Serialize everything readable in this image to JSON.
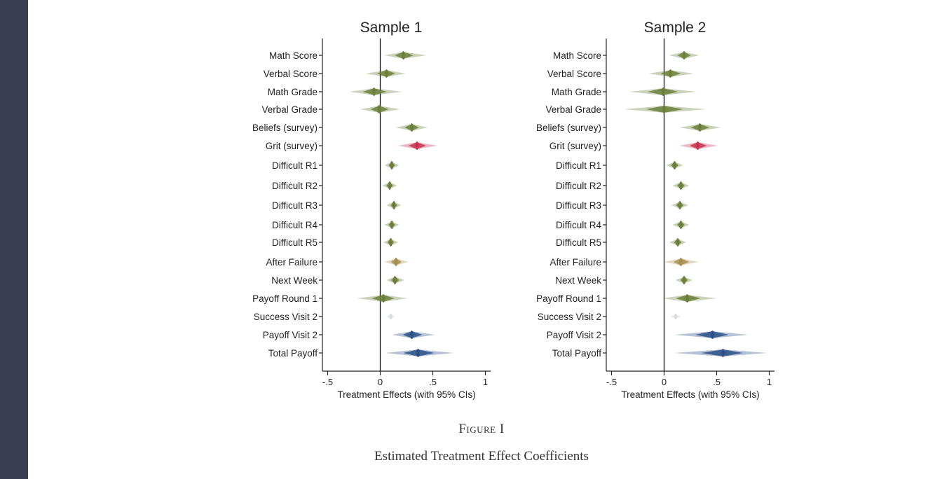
{
  "colors": {
    "sidebar": "#3a3f55",
    "green": "#6b7f3a",
    "red": "#c8324f",
    "blue": "#2a4f86",
    "tan": "#a68f4e",
    "grey": "#d8dde0",
    "title": "#3a3f66"
  },
  "chart_data": [
    {
      "type": "scatter",
      "title": "Sample 1",
      "xlabel": "Treatment Effects (with 95% CIs)",
      "ylabel": "",
      "xlim": [
        -0.55,
        1.05
      ],
      "xticks": [
        -0.5,
        0,
        0.5,
        1
      ],
      "xtick_labels": [
        "-.5",
        "0",
        ".5",
        "1"
      ],
      "grid": false,
      "series": [
        {
          "name": "Math Score",
          "value": 0.22,
          "ci": [
            0.04,
            0.44
          ],
          "color": "green"
        },
        {
          "name": "Verbal Score",
          "value": 0.06,
          "ci": [
            -0.14,
            0.24
          ],
          "color": "green"
        },
        {
          "name": "Math Grade",
          "value": -0.06,
          "ci": [
            -0.29,
            0.21
          ],
          "color": "green"
        },
        {
          "name": "Verbal Grade",
          "value": -0.01,
          "ci": [
            -0.19,
            0.19
          ],
          "color": "green"
        },
        {
          "name": "Beliefs (survey)",
          "value": 0.3,
          "ci": [
            0.15,
            0.45
          ],
          "color": "green"
        },
        {
          "name": "Grit (survey)",
          "value": 0.35,
          "ci": [
            0.17,
            0.54
          ],
          "color": "red"
        },
        {
          "name": "Difficult R1",
          "value": 0.11,
          "ci": [
            0.04,
            0.18
          ],
          "color": "green"
        },
        {
          "name": "Difficult R2",
          "value": 0.09,
          "ci": [
            0.02,
            0.16
          ],
          "color": "green"
        },
        {
          "name": "Difficult R3",
          "value": 0.13,
          "ci": [
            0.06,
            0.2
          ],
          "color": "green"
        },
        {
          "name": "Difficult R4",
          "value": 0.11,
          "ci": [
            0.04,
            0.18
          ],
          "color": "green"
        },
        {
          "name": "Difficult R5",
          "value": 0.1,
          "ci": [
            0.03,
            0.17
          ],
          "color": "green"
        },
        {
          "name": "After Failure",
          "value": 0.15,
          "ci": [
            0.04,
            0.27
          ],
          "color": "tan"
        },
        {
          "name": "Next Week",
          "value": 0.14,
          "ci": [
            0.06,
            0.23
          ],
          "color": "green"
        },
        {
          "name": "Payoff Round 1",
          "value": 0.03,
          "ci": [
            -0.22,
            0.26
          ],
          "color": "green"
        },
        {
          "name": "Success Visit 2",
          "value": 0.1,
          "ci": [
            0.06,
            0.14
          ],
          "color": "grey"
        },
        {
          "name": "Payoff Visit 2",
          "value": 0.3,
          "ci": [
            0.11,
            0.52
          ],
          "color": "blue"
        },
        {
          "name": "Total Payoff",
          "value": 0.36,
          "ci": [
            0.05,
            0.7
          ],
          "color": "blue"
        }
      ]
    },
    {
      "type": "scatter",
      "title": "Sample 2",
      "xlabel": "Treatment Effects (with 95% CIs)",
      "ylabel": "",
      "xlim": [
        -0.55,
        1.05
      ],
      "xticks": [
        -0.5,
        0,
        0.5,
        1
      ],
      "xtick_labels": [
        "-.5",
        "0",
        ".5",
        "1"
      ],
      "grid": false,
      "series": [
        {
          "name": "Math Score",
          "value": 0.19,
          "ci": [
            0.05,
            0.33
          ],
          "color": "green"
        },
        {
          "name": "Verbal Score",
          "value": 0.06,
          "ci": [
            -0.15,
            0.28
          ],
          "color": "green"
        },
        {
          "name": "Math Grade",
          "value": -0.01,
          "ci": [
            -0.33,
            0.31
          ],
          "color": "green"
        },
        {
          "name": "Verbal Grade",
          "value": 0.0,
          "ci": [
            -0.38,
            0.4
          ],
          "color": "green"
        },
        {
          "name": "Beliefs (survey)",
          "value": 0.34,
          "ci": [
            0.15,
            0.54
          ],
          "color": "green"
        },
        {
          "name": "Grit (survey)",
          "value": 0.32,
          "ci": [
            0.15,
            0.51
          ],
          "color": "red"
        },
        {
          "name": "Difficult R1",
          "value": 0.1,
          "ci": [
            0.02,
            0.18
          ],
          "color": "green"
        },
        {
          "name": "Difficult R2",
          "value": 0.16,
          "ci": [
            0.08,
            0.24
          ],
          "color": "green"
        },
        {
          "name": "Difficult R3",
          "value": 0.15,
          "ci": [
            0.07,
            0.23
          ],
          "color": "green"
        },
        {
          "name": "Difficult R4",
          "value": 0.16,
          "ci": [
            0.08,
            0.24
          ],
          "color": "green"
        },
        {
          "name": "Difficult R5",
          "value": 0.13,
          "ci": [
            0.05,
            0.21
          ],
          "color": "green"
        },
        {
          "name": "After Failure",
          "value": 0.16,
          "ci": [
            0.0,
            0.33
          ],
          "color": "tan"
        },
        {
          "name": "Next Week",
          "value": 0.19,
          "ci": [
            0.11,
            0.27
          ],
          "color": "green"
        },
        {
          "name": "Payoff Round 1",
          "value": 0.22,
          "ci": [
            -0.02,
            0.5
          ],
          "color": "green"
        },
        {
          "name": "Success Visit 2",
          "value": 0.11,
          "ci": [
            0.06,
            0.16
          ],
          "color": "grey"
        },
        {
          "name": "Payoff Visit 2",
          "value": 0.46,
          "ci": [
            0.1,
            0.8
          ],
          "color": "blue"
        },
        {
          "name": "Total Payoff",
          "value": 0.56,
          "ci": [
            0.1,
            0.98
          ],
          "color": "blue"
        }
      ]
    }
  ],
  "figure": {
    "label": "Figure I",
    "title": "Estimated Treatment Effect Coefficients"
  }
}
